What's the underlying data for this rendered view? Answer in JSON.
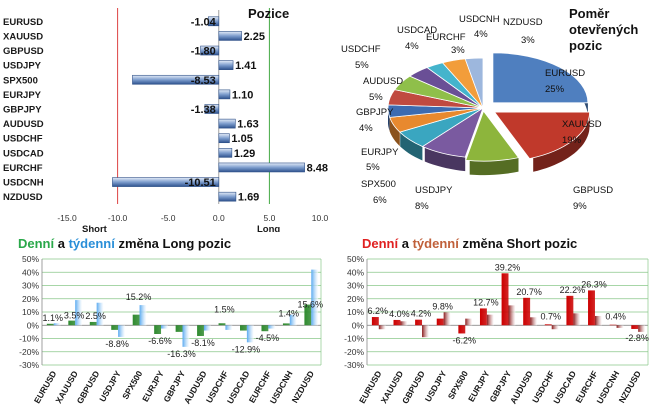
{
  "chart_data": [
    {
      "id": "positions",
      "type": "bar",
      "orientation": "horizontal",
      "title": "Pozice",
      "categories": [
        "EURUSD",
        "XAUUSD",
        "GBPUSD",
        "USDJPY",
        "SPX500",
        "EURJPY",
        "GBPJPY",
        "AUDUSD",
        "USDCHF",
        "USDCAD",
        "EURCHF",
        "USDCNH",
        "NZDUSD"
      ],
      "values": [
        -1.04,
        2.25,
        -1.8,
        1.41,
        -8.53,
        1.1,
        -1.38,
        1.63,
        1.05,
        1.29,
        8.48,
        -10.51,
        1.69
      ],
      "value_labels": [
        "-1.04",
        "2.25",
        "-1.80",
        "1.41",
        "-8.53",
        "1.10",
        "-1.38",
        "1.63",
        "1.05",
        "1.29",
        "8.48",
        "-10.51",
        "1.69"
      ],
      "xlim": [
        -15,
        10
      ],
      "xticks": [
        "-15.0",
        "-10.0",
        "-5.0",
        "0.0",
        "5.0",
        "10.0"
      ],
      "short_label": "Short",
      "long_label": "Long",
      "colors": {
        "bar": "#5b7fb5",
        "short_line": "#d44",
        "long_line": "#4a4"
      }
    },
    {
      "id": "open_ratio",
      "type": "pie",
      "title_lines": [
        "Poměr",
        "otevřených",
        "pozic"
      ],
      "slices": [
        {
          "label": "EURUSD",
          "value": 25,
          "text": "25%",
          "color": "#4f7fbf"
        },
        {
          "label": "XAUUSD",
          "value": 19,
          "text": "19%",
          "color": "#c0392b"
        },
        {
          "label": "GBPUSD",
          "value": 9,
          "text": "9%",
          "color": "#8db53c"
        },
        {
          "label": "USDJPY",
          "value": 8,
          "text": "8%",
          "color": "#7a5aa0"
        },
        {
          "label": "SPX500",
          "value": 6,
          "text": "6%",
          "color": "#3aa6c0"
        },
        {
          "label": "EURJPY",
          "value": 5,
          "text": "5%",
          "color": "#e8892e"
        },
        {
          "label": "GBPJPY",
          "value": 4,
          "text": "4%",
          "color": "#3d6bb0"
        },
        {
          "label": "AUDUSD",
          "value": 5,
          "text": "5%",
          "color": "#c04a40"
        },
        {
          "label": "USDCHF",
          "value": 5,
          "text": "5%",
          "color": "#8fbf4a"
        },
        {
          "label": "USDCAD",
          "value": 4,
          "text": "4%",
          "color": "#6a4f96"
        },
        {
          "label": "EURCHF",
          "value": 3,
          "text": "3%",
          "color": "#44b4cc"
        },
        {
          "label": "USDCNH",
          "value": 4,
          "text": "4%",
          "color": "#f29d3a"
        },
        {
          "label": "NZDUSD",
          "value": 3,
          "text": "3%",
          "color": "#9db7dd"
        }
      ]
    },
    {
      "id": "long_change",
      "type": "bar",
      "title_parts": [
        {
          "text": "Denní",
          "color": "#2aa84a"
        },
        {
          "text": " a ",
          "color": "#111111"
        },
        {
          "text": "týdenní",
          "color": "#2a8fd8"
        },
        {
          "text": " změna Long pozic",
          "color": "#111111"
        }
      ],
      "categories": [
        "EURUSD",
        "XAUUSD",
        "GBPUSD",
        "USDJPY",
        "SPX500",
        "EURJPY",
        "GBPJPY",
        "AUDUSD",
        "USDCHF",
        "USDCAD",
        "EURCHF",
        "USDCNH",
        "NZDUSD"
      ],
      "series": [
        {
          "values": [
            1.1,
            3.5,
            2.5,
            -3.5,
            8.0,
            -6.6,
            -5.0,
            -8.1,
            1.5,
            -4.0,
            -4.5,
            1.4,
            15.6
          ],
          "color": "#2f8a2f"
        },
        {
          "values": [
            1.5,
            19.0,
            17.0,
            -8.8,
            15.2,
            -2.5,
            -16.3,
            -4.0,
            -3.5,
            -12.9,
            -2.5,
            8.0,
            42.0
          ],
          "color": "#5aaaf0"
        }
      ],
      "data_labels": [
        {
          "cat": 0,
          "text": "1.1%",
          "v": 1.1
        },
        {
          "cat": 1,
          "text": "3.5%",
          "v": 3.5
        },
        {
          "cat": 2,
          "text": "2.5%",
          "v": 2.5
        },
        {
          "cat": 3,
          "text": "-8.8%",
          "v": -8.8
        },
        {
          "cat": 4,
          "text": "15.2%",
          "v": 15.2
        },
        {
          "cat": 5,
          "text": "-6.6%",
          "v": -6.6
        },
        {
          "cat": 6,
          "text": "-16.3%",
          "v": -16.3
        },
        {
          "cat": 7,
          "text": "-8.1%",
          "v": -8.1
        },
        {
          "cat": 8,
          "text": "1.5%",
          "v": 1.5
        },
        {
          "cat": 9,
          "text": "-12.9%",
          "v": -12.9
        },
        {
          "cat": 10,
          "text": "-4.5%",
          "v": -4.5
        },
        {
          "cat": 11,
          "text": "1.4%",
          "v": 1.4
        },
        {
          "cat": 12,
          "text": "15.6%",
          "v": 15.6
        }
      ],
      "ylim": [
        -30,
        50
      ],
      "yticks": [
        "50%",
        "40%",
        "30%",
        "20%",
        "10%",
        "0%",
        "-10%",
        "-20%",
        "-30%"
      ],
      "grid": true
    },
    {
      "id": "short_change",
      "type": "bar",
      "title_parts": [
        {
          "text": "Denní",
          "color": "#e02020"
        },
        {
          "text": " a ",
          "color": "#111111"
        },
        {
          "text": "týdenní",
          "color": "#c0603a"
        },
        {
          "text": " změna Short pozic",
          "color": "#111111"
        }
      ],
      "categories": [
        "EURUSD",
        "XAUUSD",
        "GBPUSD",
        "USDJPY",
        "SPX500",
        "EURJPY",
        "GBPJPY",
        "AUDUSD",
        "USDCHF",
        "USDCAD",
        "EURCHF",
        "USDCNH",
        "NZDUSD"
      ],
      "series": [
        {
          "values": [
            6.2,
            4.0,
            4.2,
            5.0,
            -6.2,
            12.7,
            39.2,
            20.7,
            0.7,
            22.2,
            26.3,
            0.4,
            -2.8
          ],
          "color": "#cc0000"
        },
        {
          "values": [
            -3.0,
            3.0,
            -9.0,
            9.8,
            5.0,
            8.0,
            15.0,
            6.0,
            -3.0,
            9.0,
            7.0,
            -2.0,
            -5.0
          ],
          "color": "#8a1a1a"
        }
      ],
      "data_labels": [
        {
          "cat": 0,
          "text": "6.2%",
          "v": 6.2
        },
        {
          "cat": 1,
          "text": "4.0%",
          "v": 4.0
        },
        {
          "cat": 2,
          "text": "4.2%",
          "v": 4.2
        },
        {
          "cat": 3,
          "text": "9.8%",
          "v": 9.8
        },
        {
          "cat": 4,
          "text": "-6.2%",
          "v": -6.2
        },
        {
          "cat": 5,
          "text": "12.7%",
          "v": 12.7
        },
        {
          "cat": 6,
          "text": "39.2%",
          "v": 39.2
        },
        {
          "cat": 7,
          "text": "20.7%",
          "v": 20.7
        },
        {
          "cat": 8,
          "text": "0.7%",
          "v": 0.7
        },
        {
          "cat": 9,
          "text": "22.2%",
          "v": 22.2
        },
        {
          "cat": 10,
          "text": "26.3%",
          "v": 26.3
        },
        {
          "cat": 11,
          "text": "0.4%",
          "v": 0.4
        },
        {
          "cat": 12,
          "text": "-2.8%",
          "v": -2.8
        }
      ],
      "ylim": [
        -30,
        50
      ],
      "yticks": [
        "50%",
        "40%",
        "30%",
        "20%",
        "10%",
        "0%",
        "-10%",
        "-20%",
        "-30%"
      ],
      "grid": true
    }
  ]
}
